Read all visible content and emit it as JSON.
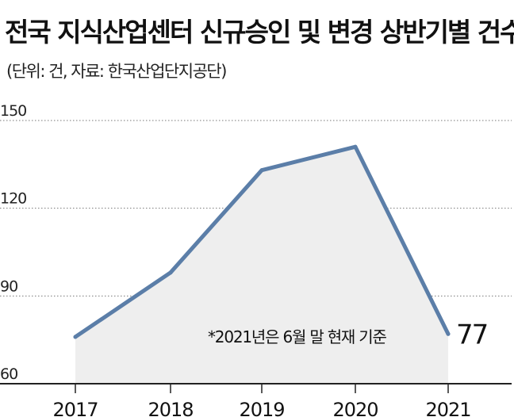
{
  "header": {
    "title": "전국 지식산업센터 신규승인 및 변경 상반기별 건수",
    "subtitle": "(단위: 건, 자료: 한국산업단지공단)"
  },
  "chart_data": {
    "type": "area",
    "categories": [
      "2017",
      "2018",
      "2019",
      "2020",
      "2021"
    ],
    "values": [
      76,
      98,
      133,
      141,
      77
    ],
    "ylim": [
      60,
      150
    ],
    "yticks": [
      "60",
      "90",
      "120",
      "150"
    ],
    "grid": true,
    "data_labels": [
      {
        "index": 4,
        "text": "77"
      }
    ],
    "annotation": "*2021년은 6월 말 현재 기준",
    "colors": {
      "line": "#5b7ea8",
      "fill": "#eeeeee",
      "grid": "#777777",
      "axis": "#222222"
    }
  }
}
